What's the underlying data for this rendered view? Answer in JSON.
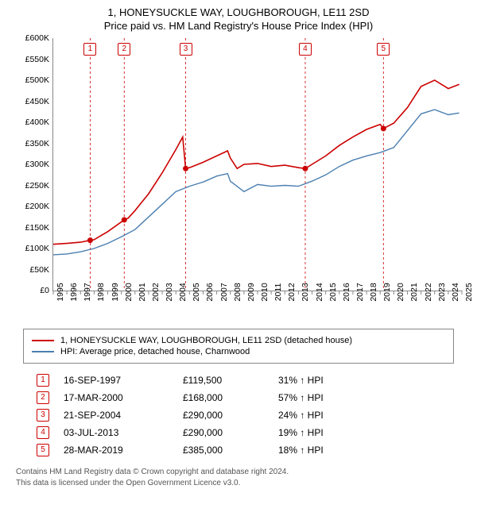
{
  "title_line1": "1, HONEYSUCKLE WAY, LOUGHBOROUGH, LE11 2SD",
  "title_line2": "Price paid vs. HM Land Registry's House Price Index (HPI)",
  "chart": {
    "type": "line",
    "background_color": "#ffffff",
    "ylabel_prefix": "£",
    "ylim": [
      0,
      600000
    ],
    "ytick_step": 50000,
    "yticks": [
      "£0",
      "£50K",
      "£100K",
      "£150K",
      "£200K",
      "£250K",
      "£300K",
      "£350K",
      "£400K",
      "£450K",
      "£500K",
      "£550K",
      "£600K"
    ],
    "xlim": [
      1995,
      2025
    ],
    "xticks": [
      1995,
      1996,
      1997,
      1998,
      1999,
      2000,
      2001,
      2002,
      2003,
      2004,
      2005,
      2006,
      2007,
      2008,
      2009,
      2010,
      2011,
      2012,
      2013,
      2014,
      2015,
      2016,
      2017,
      2018,
      2019,
      2020,
      2021,
      2022,
      2023,
      2024,
      2025
    ],
    "axis_color": "#888888",
    "label_fontsize": 10.5,
    "series": [
      {
        "name": "1, HONEYSUCKLE WAY, LOUGHBOROUGH, LE11 2SD (detached house)",
        "color": "#cc0000",
        "line_width": 1.6,
        "data": [
          [
            1995,
            110000
          ],
          [
            1996,
            112000
          ],
          [
            1997,
            115000
          ],
          [
            1997.71,
            119500
          ],
          [
            1998,
            121000
          ],
          [
            1999,
            140000
          ],
          [
            2000.21,
            168000
          ],
          [
            2000.5,
            172000
          ],
          [
            2001,
            190000
          ],
          [
            2002,
            230000
          ],
          [
            2003,
            280000
          ],
          [
            2004,
            335000
          ],
          [
            2004.5,
            365000
          ],
          [
            2004.72,
            290000
          ],
          [
            2005,
            292000
          ],
          [
            2006,
            305000
          ],
          [
            2007,
            320000
          ],
          [
            2007.8,
            332000
          ],
          [
            2008,
            315000
          ],
          [
            2008.5,
            290000
          ],
          [
            2009,
            300000
          ],
          [
            2010,
            302000
          ],
          [
            2011,
            295000
          ],
          [
            2012,
            298000
          ],
          [
            2013,
            292000
          ],
          [
            2013.5,
            290000
          ],
          [
            2014,
            300000
          ],
          [
            2015,
            320000
          ],
          [
            2016,
            345000
          ],
          [
            2017,
            365000
          ],
          [
            2018,
            383000
          ],
          [
            2019,
            395000
          ],
          [
            2019.24,
            385000
          ],
          [
            2020,
            398000
          ],
          [
            2021,
            435000
          ],
          [
            2022,
            485000
          ],
          [
            2023,
            500000
          ],
          [
            2024,
            480000
          ],
          [
            2024.8,
            490000
          ]
        ]
      },
      {
        "name": "HPI: Average price, detached house, Charnwood",
        "color": "#4a7fb0",
        "line_width": 1.4,
        "data": [
          [
            1995,
            85000
          ],
          [
            1996,
            87000
          ],
          [
            1997,
            92000
          ],
          [
            1998,
            100000
          ],
          [
            1999,
            112000
          ],
          [
            2000,
            128000
          ],
          [
            2001,
            145000
          ],
          [
            2002,
            175000
          ],
          [
            2003,
            205000
          ],
          [
            2004,
            235000
          ],
          [
            2005,
            248000
          ],
          [
            2006,
            258000
          ],
          [
            2007,
            272000
          ],
          [
            2007.8,
            278000
          ],
          [
            2008,
            260000
          ],
          [
            2009,
            235000
          ],
          [
            2010,
            252000
          ],
          [
            2011,
            248000
          ],
          [
            2012,
            250000
          ],
          [
            2013,
            248000
          ],
          [
            2014,
            260000
          ],
          [
            2015,
            275000
          ],
          [
            2016,
            295000
          ],
          [
            2017,
            310000
          ],
          [
            2018,
            320000
          ],
          [
            2019,
            328000
          ],
          [
            2020,
            340000
          ],
          [
            2021,
            380000
          ],
          [
            2022,
            420000
          ],
          [
            2023,
            430000
          ],
          [
            2024,
            418000
          ],
          [
            2024.8,
            422000
          ]
        ]
      }
    ],
    "sales": [
      {
        "n": 1,
        "year": 1997.71,
        "price": 119500
      },
      {
        "n": 2,
        "year": 2000.21,
        "price": 168000
      },
      {
        "n": 3,
        "year": 2004.72,
        "price": 290000
      },
      {
        "n": 4,
        "year": 2013.5,
        "price": 290000
      },
      {
        "n": 5,
        "year": 2019.24,
        "price": 385000
      }
    ],
    "sale_marker": {
      "box_border": "#cc0000",
      "box_fill": "#ffffff",
      "vline_color": "#cc0000",
      "vline_dash": "3,3",
      "dot_color": "#cc0000",
      "dot_radius": 3.5
    }
  },
  "legend": {
    "items": [
      {
        "color": "#cc0000",
        "label": "1, HONEYSUCKLE WAY, LOUGHBOROUGH, LE11 2SD (detached house)"
      },
      {
        "color": "#4a7fb0",
        "label": "HPI: Average price, detached house, Charnwood"
      }
    ]
  },
  "sale_table": {
    "rows": [
      {
        "n": "1",
        "date": "16-SEP-1997",
        "price": "£119,500",
        "delta": "31% ↑ HPI"
      },
      {
        "n": "2",
        "date": "17-MAR-2000",
        "price": "£168,000",
        "delta": "57% ↑ HPI"
      },
      {
        "n": "3",
        "date": "21-SEP-2004",
        "price": "£290,000",
        "delta": "24% ↑ HPI"
      },
      {
        "n": "4",
        "date": "03-JUL-2013",
        "price": "£290,000",
        "delta": "19% ↑ HPI"
      },
      {
        "n": "5",
        "date": "28-MAR-2019",
        "price": "£385,000",
        "delta": "18% ↑ HPI"
      }
    ]
  },
  "footer_line1": "Contains HM Land Registry data © Crown copyright and database right 2024.",
  "footer_line2": "This data is licensed under the Open Government Licence v3.0."
}
